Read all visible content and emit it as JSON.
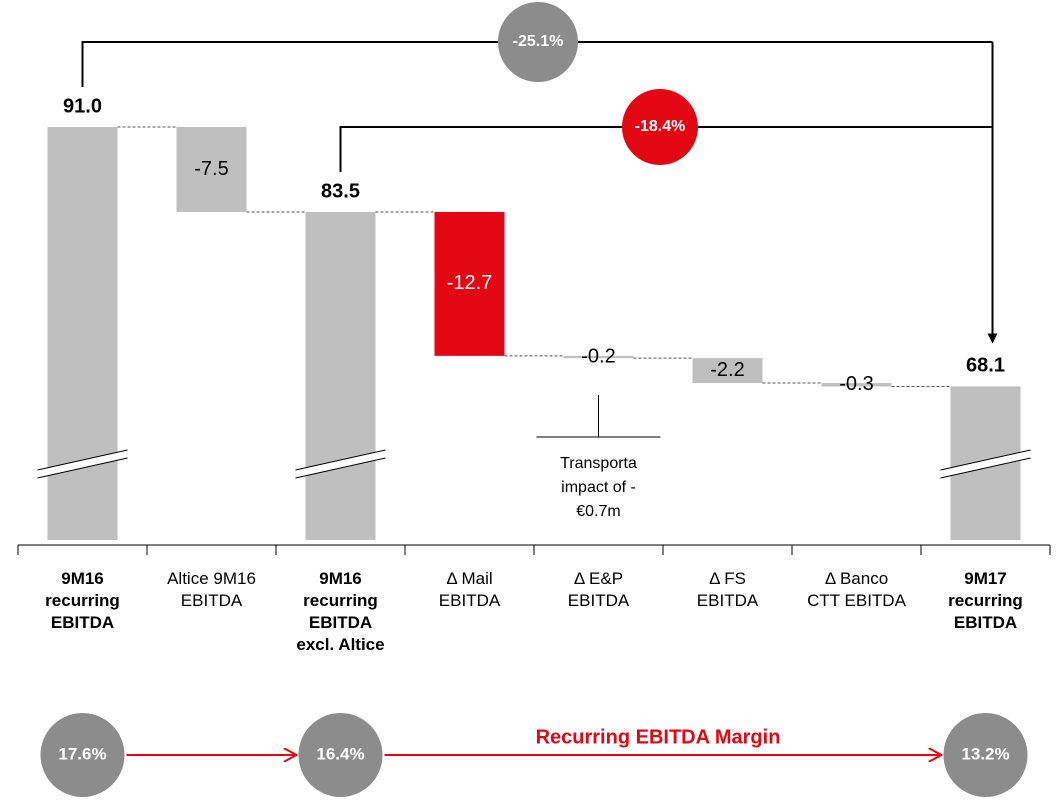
{
  "chart_data": {
    "type": "waterfall",
    "categories": [
      "9M16 recurring EBITDA",
      "Altice 9M16 EBITDA",
      "9M16 recurring EBITDA excl. Altice",
      "Δ Mail EBITDA",
      "Δ E&P EBITDA",
      "Δ FS EBITDA",
      "Δ Banco CTT EBITDA",
      "9M17 recurring EBITDA"
    ],
    "measure": [
      "total",
      "relative",
      "total",
      "relative",
      "relative",
      "relative",
      "relative",
      "total"
    ],
    "values": [
      91.0,
      -7.5,
      83.5,
      -12.7,
      -0.2,
      -2.2,
      -0.3,
      68.1
    ],
    "value_labels": [
      "91.0",
      "-7.5",
      "83.5",
      "-12.7",
      "-0.2",
      "-2.2",
      "-0.3",
      "68.1"
    ],
    "colors": [
      "#bfbfbf",
      "#bfbfbf",
      "#bfbfbf",
      "#e30613",
      "#bfbfbf",
      "#bfbfbf",
      "#bfbfbf",
      "#bfbfbf"
    ],
    "changes": [
      {
        "value": -25.1,
        "label": "-25.1%",
        "color": "#8c8c8c"
      },
      {
        "value": -18.4,
        "label": "-18.4%",
        "color": "#e30613"
      }
    ],
    "note": "Transporta impact of -€0.7m",
    "margins": {
      "title": "Recurring EBITDA Margin",
      "values": [
        17.6,
        16.4,
        13.2
      ],
      "value_labels": [
        "17.6%",
        "16.4%",
        "13.2%"
      ],
      "color": "#8c8c8c"
    }
  }
}
